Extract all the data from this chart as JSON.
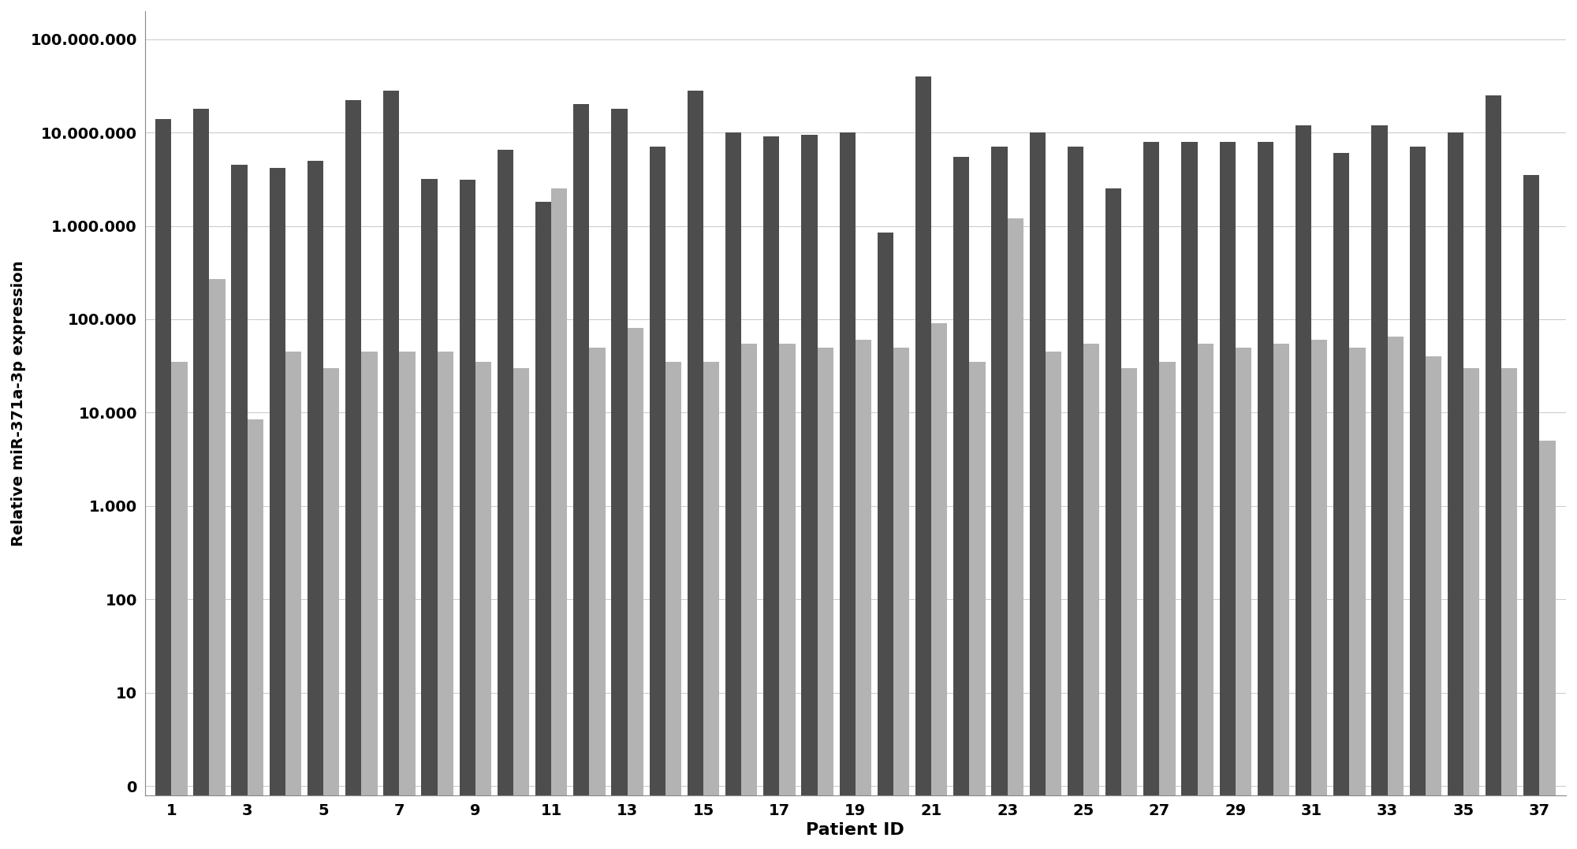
{
  "patients_tumor": [
    14000000,
    18000000,
    4500000,
    4200000,
    5000000,
    22000000,
    28000000,
    3200000,
    3100000,
    6500000,
    1800000,
    20000000,
    18000000,
    7000000,
    28000000,
    10000000,
    9000000,
    9500000,
    10000000,
    850000,
    40000000,
    5500000,
    7000000,
    10000000,
    7000000,
    2500000,
    8000000,
    8000000,
    8000000,
    8000000,
    12000000,
    6000000,
    12000000,
    7000000,
    10000000,
    25000000,
    3500000
  ],
  "patients_control": [
    35000,
    270000,
    8500,
    45000,
    30000,
    45000,
    45000,
    45000,
    35000,
    30000,
    2500000,
    50000,
    80000,
    35000,
    35000,
    55000,
    55000,
    50000,
    60000,
    50000,
    90000,
    35000,
    1200000,
    45000,
    55000,
    30000,
    35000,
    55000,
    50000,
    55000,
    60000,
    50000,
    65000,
    40000,
    30000,
    30000,
    5000
  ],
  "tumor_color": "#4d4d4d",
  "control_color": "#b3b3b3",
  "xlabel": "Patient ID",
  "ylabel": "Relative miR-371a-3p expression",
  "background_color": "#ffffff",
  "grid_color": "#cccccc",
  "xtick_labels": [
    "1",
    "3",
    "5",
    "7",
    "9",
    "11",
    "13",
    "15",
    "17",
    "19",
    "21",
    "23",
    "25",
    "27",
    "29",
    "31",
    "33",
    "35",
    "37"
  ],
  "ytick_labels": [
    "0",
    "10",
    "100",
    "1.000",
    "10.000",
    "100.000",
    "1.000.000",
    "10.000.000",
    "100.000.000"
  ],
  "ytick_values": [
    1,
    10,
    100,
    1000,
    10000,
    100000,
    1000000,
    10000000,
    100000000
  ]
}
